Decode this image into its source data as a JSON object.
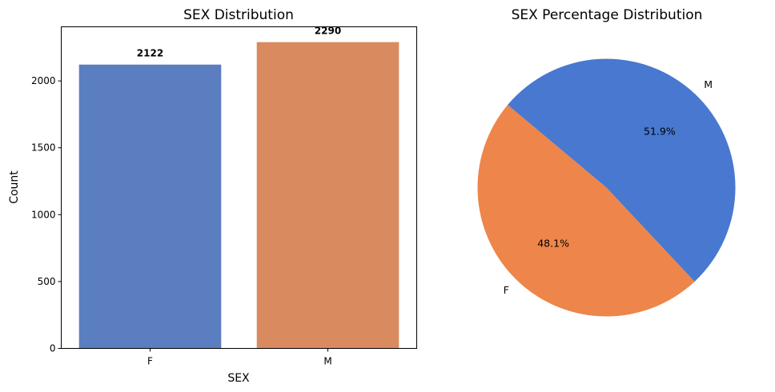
{
  "chart_data": [
    {
      "type": "bar",
      "title": "SEX Distribution",
      "xlabel": "SEX",
      "ylabel": "Count",
      "categories": [
        "F",
        "M"
      ],
      "values": [
        2122,
        2290
      ],
      "value_labels": [
        "2122",
        "2290"
      ],
      "colors": [
        "#5b7ec0",
        "#d98b5f"
      ],
      "ylim": [
        0,
        2404.5
      ],
      "yticks": [
        0,
        500,
        1000,
        1500,
        2000
      ],
      "ytick_labels": [
        "0",
        "500",
        "1000",
        "1500",
        "2000"
      ],
      "grid": false,
      "legend": "none"
    },
    {
      "type": "pie",
      "title": "SEX Percentage Distribution",
      "labels": [
        "F",
        "M"
      ],
      "values": [
        48.1,
        51.9
      ],
      "pct_labels": [
        "48.1%",
        "51.9%"
      ],
      "colors": [
        "#ee854a",
        "#4878cf"
      ],
      "start_angle_deg": 140,
      "legend": "none"
    }
  ]
}
